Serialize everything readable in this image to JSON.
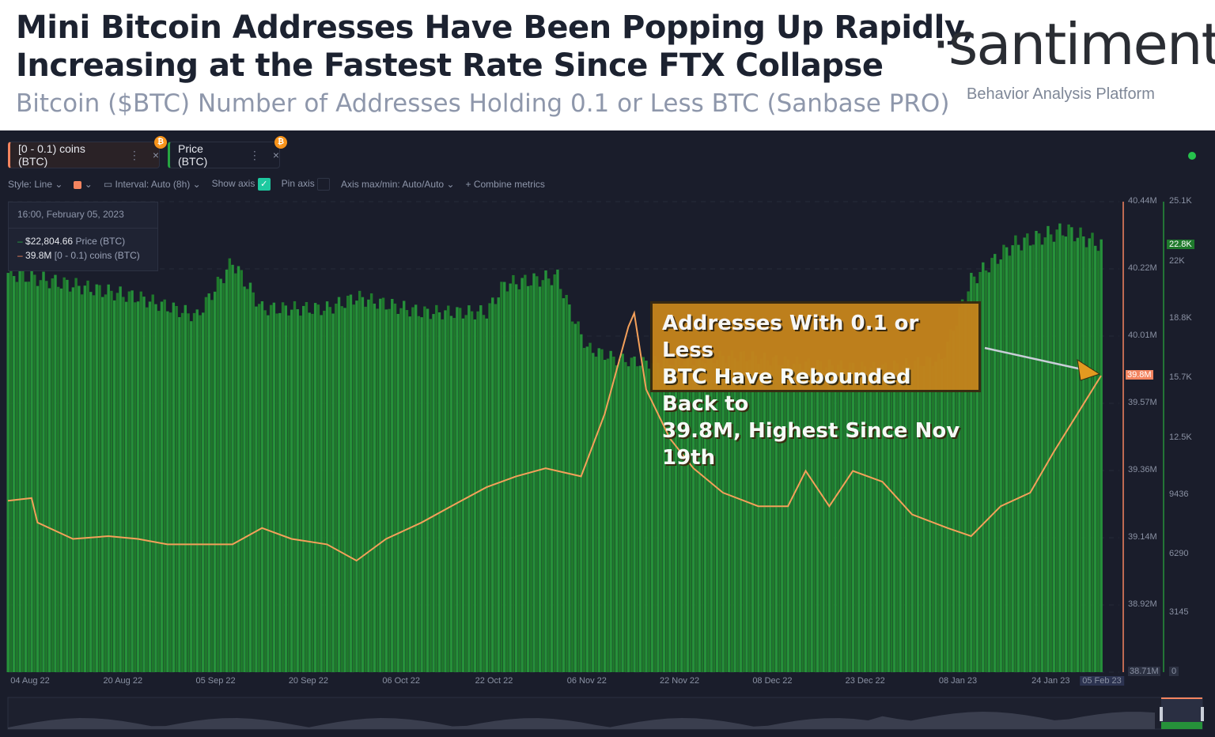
{
  "header": {
    "title_line1": "Mini Bitcoin Addresses Have Been Popping Up Rapidly,",
    "title_line2": "Increasing at the Fastest Rate Since FTX Collapse",
    "subtitle": "Bitcoin ($BTC) Number of Addresses Holding 0.1 or Less BTC (Sanbase PRO)",
    "logo": "·santiment·",
    "tagline": "Behavior Analysis Platform"
  },
  "metrics": [
    {
      "label": "[0 - 0.1) coins (BTC)",
      "color": "#f4845f"
    },
    {
      "label": "Price (BTC)",
      "color": "#26a541"
    }
  ],
  "toolbar": {
    "style": "Style: Line",
    "interval": "Interval: Auto (8h)",
    "show_axis": "Show axis",
    "show_axis_checked": true,
    "pin_axis": "Pin axis",
    "pin_axis_checked": false,
    "axis_minmax": "Axis max/min: Auto/Auto",
    "combine": "Combine metrics"
  },
  "tooltip": {
    "date": "16:00, February 05, 2023",
    "price_value": "$22,804.66",
    "price_label": "Price (BTC)",
    "addr_value": "39.8M",
    "addr_label": "[0 - 0.1) coins (BTC)"
  },
  "annotation": {
    "line1": "Addresses With 0.1 or Less",
    "line2": "BTC Have Rebounded Back to",
    "line3": "39.8M, Highest Since Nov 19th"
  },
  "chart_data": {
    "type": "bar+line",
    "x_ticks": [
      "04 Aug 22",
      "20 Aug 22",
      "05 Sep 22",
      "20 Sep 22",
      "06 Oct 22",
      "22 Oct 22",
      "06 Nov 22",
      "22 Nov 22",
      "08 Dec 22",
      "23 Dec 22",
      "08 Jan 23",
      "24 Jan 23",
      "05 Feb 23"
    ],
    "addr_axis": {
      "ticks": [
        "40.44M",
        "40.22M",
        "40.01M",
        "39.57M",
        "39.36M",
        "39.14M",
        "38.92M",
        "38.71M"
      ],
      "ylim": [
        38.71,
        40.44
      ],
      "current": "39.8M"
    },
    "price_axis": {
      "ticks": [
        "25.1K",
        "22K",
        "18.8K",
        "15.7K",
        "12.5K",
        "9436",
        "6290",
        "3145",
        "0"
      ],
      "ylim": [
        0,
        25100
      ],
      "current": "22.8K"
    },
    "series": [
      {
        "name": "[0 - 0.1) coins (BTC)",
        "type": "line",
        "color": "#f4a05a",
        "unit": "M",
        "points": [
          [
            "2022-08-04",
            39.34
          ],
          [
            "2022-08-08",
            39.35
          ],
          [
            "2022-08-09",
            39.26
          ],
          [
            "2022-08-15",
            39.2
          ],
          [
            "2022-08-21",
            39.21
          ],
          [
            "2022-08-26",
            39.2
          ],
          [
            "2022-08-31",
            39.18
          ],
          [
            "2022-09-05",
            39.18
          ],
          [
            "2022-09-11",
            39.18
          ],
          [
            "2022-09-16",
            39.24
          ],
          [
            "2022-09-21",
            39.2
          ],
          [
            "2022-09-27",
            39.18
          ],
          [
            "2022-10-02",
            39.12
          ],
          [
            "2022-10-07",
            39.2
          ],
          [
            "2022-10-13",
            39.26
          ],
          [
            "2022-10-18",
            39.32
          ],
          [
            "2022-10-24",
            39.39
          ],
          [
            "2022-10-29",
            39.43
          ],
          [
            "2022-11-03",
            39.46
          ],
          [
            "2022-11-09",
            39.43
          ],
          [
            "2022-11-13",
            39.66
          ],
          [
            "2022-11-17",
            39.98
          ],
          [
            "2022-11-18",
            40.03
          ],
          [
            "2022-11-20",
            39.75
          ],
          [
            "2022-11-24",
            39.57
          ],
          [
            "2022-11-28",
            39.46
          ],
          [
            "2022-12-03",
            39.37
          ],
          [
            "2022-12-09",
            39.32
          ],
          [
            "2022-12-14",
            39.32
          ],
          [
            "2022-12-17",
            39.45
          ],
          [
            "2022-12-21",
            39.32
          ],
          [
            "2022-12-25",
            39.45
          ],
          [
            "2022-12-30",
            39.41
          ],
          [
            "2023-01-04",
            39.29
          ],
          [
            "2023-01-10",
            39.24
          ],
          [
            "2023-01-14",
            39.21
          ],
          [
            "2023-01-19",
            39.32
          ],
          [
            "2023-01-24",
            39.37
          ],
          [
            "2023-01-28",
            39.52
          ],
          [
            "2023-02-01",
            39.66
          ],
          [
            "2023-02-05",
            39.8
          ]
        ]
      },
      {
        "name": "Price (BTC)",
        "type": "bar",
        "color": "#23862f",
        "unit": "USD",
        "points": [
          [
            "2022-08-04",
            21300
          ],
          [
            "2022-08-26",
            20000
          ],
          [
            "2022-09-05",
            19000
          ],
          [
            "2022-09-11",
            21900
          ],
          [
            "2022-09-16",
            19400
          ],
          [
            "2022-09-27",
            19400
          ],
          [
            "2022-10-02",
            20000
          ],
          [
            "2022-10-13",
            19200
          ],
          [
            "2022-10-24",
            19200
          ],
          [
            "2022-10-27",
            20700
          ],
          [
            "2022-11-05",
            21100
          ],
          [
            "2022-11-07",
            19400
          ],
          [
            "2022-11-10",
            17300
          ],
          [
            "2022-11-15",
            16700
          ],
          [
            "2022-11-20",
            16500
          ],
          [
            "2022-11-28",
            16700
          ],
          [
            "2022-12-06",
            16900
          ],
          [
            "2022-12-15",
            16500
          ],
          [
            "2022-12-29",
            16200
          ],
          [
            "2023-01-09",
            16700
          ],
          [
            "2023-01-14",
            20900
          ],
          [
            "2023-01-21",
            22800
          ],
          [
            "2023-01-30",
            23600
          ],
          [
            "2023-02-05",
            22800
          ]
        ]
      }
    ]
  }
}
